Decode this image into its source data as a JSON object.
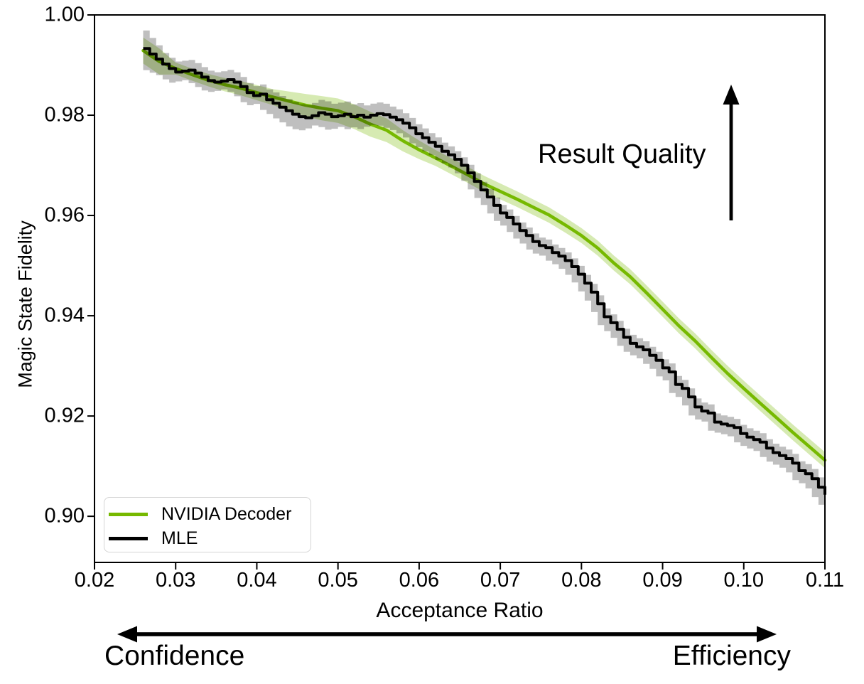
{
  "chart_data": {
    "type": "line",
    "title": "",
    "xlabel": "Acceptance Ratio",
    "ylabel": "Magic State Fidelity",
    "xlim": [
      0.02,
      0.11
    ],
    "ylim": [
      0.8908,
      1.0
    ],
    "xticks": [
      0.02,
      0.03,
      0.04,
      0.05,
      0.06,
      0.07,
      0.08,
      0.09,
      0.1,
      0.11
    ],
    "yticks": [
      0.9,
      0.92,
      0.94,
      0.96,
      0.98,
      1.0
    ],
    "grid": false,
    "legend_position": "lower left",
    "series": [
      {
        "name": "NVIDIA Decoder",
        "color": "#76b900",
        "band_color": "rgba(118,185,0,0.30)",
        "style": "smooth",
        "x0": 0.026,
        "dx": 0.002,
        "y": [
          0.9929,
          0.9907,
          0.9893,
          0.9881,
          0.987,
          0.9861,
          0.9854,
          0.9845,
          0.9836,
          0.9828,
          0.982,
          0.9814,
          0.9809,
          0.9797,
          0.9782,
          0.977,
          0.9749,
          0.9731,
          0.9715,
          0.9698,
          0.9681,
          0.9663,
          0.9648,
          0.9633,
          0.9617,
          0.9601,
          0.9581,
          0.956,
          0.9535,
          0.9505,
          0.9478,
          0.9446,
          0.9413,
          0.938,
          0.935,
          0.9317,
          0.9285,
          0.9255,
          0.9226,
          0.9197,
          0.9168,
          0.914,
          0.9112
        ],
        "band_knots": {
          "x": [
            0.026,
            0.0284,
            0.0287,
            0.033,
            0.042,
            0.047,
            0.055,
            0.062,
            0.068,
            0.08,
            0.095,
            0.11
          ],
          "hw": [
            0.0026,
            0.0026,
            0.0012,
            0.0012,
            0.0016,
            0.0024,
            0.0025,
            0.0016,
            0.0016,
            0.0015,
            0.0015,
            0.0016
          ]
        }
      },
      {
        "name": "MLE",
        "color": "#000000",
        "band_color": "rgba(0,0,0,0.25)",
        "style": "steps",
        "x0": 0.026,
        "dx": 0.0008,
        "y": [
          0.9933,
          0.9922,
          0.9912,
          0.9902,
          0.9893,
          0.9886,
          0.9888,
          0.989,
          0.9884,
          0.9876,
          0.9869,
          0.9866,
          0.9868,
          0.9871,
          0.9866,
          0.9857,
          0.9845,
          0.9839,
          0.9842,
          0.9831,
          0.9824,
          0.9816,
          0.9809,
          0.9802,
          0.9797,
          0.9795,
          0.9799,
          0.9805,
          0.9802,
          0.9797,
          0.9799,
          0.9802,
          0.9797,
          0.98,
          0.9796,
          0.98,
          0.9803,
          0.9801,
          0.9796,
          0.9791,
          0.9784,
          0.9775,
          0.9763,
          0.9755,
          0.9746,
          0.9738,
          0.9728,
          0.9721,
          0.9712,
          0.97,
          0.9685,
          0.9668,
          0.9651,
          0.9637,
          0.962,
          0.9605,
          0.9596,
          0.9583,
          0.957,
          0.956,
          0.9548,
          0.954,
          0.9536,
          0.9526,
          0.9519,
          0.951,
          0.9498,
          0.9483,
          0.9465,
          0.9447,
          0.9424,
          0.9398,
          0.9386,
          0.9373,
          0.9357,
          0.9345,
          0.9338,
          0.9332,
          0.9321,
          0.9311,
          0.9296,
          0.9288,
          0.9263,
          0.9255,
          0.9238,
          0.9218,
          0.921,
          0.9206,
          0.9188,
          0.9184,
          0.9181,
          0.9177,
          0.9165,
          0.9158,
          0.9153,
          0.9148,
          0.9136,
          0.9127,
          0.9121,
          0.9115,
          0.9106,
          0.9091,
          0.9085,
          0.9075,
          0.9058,
          0.9043
        ],
        "band_knots": {
          "x": [
            0.026,
            0.0272,
            0.0284,
            0.032,
            0.04,
            0.045,
            0.05,
            0.058,
            0.065,
            0.075,
            0.085,
            0.095,
            0.105,
            0.11
          ],
          "hw": [
            0.0036,
            0.003,
            0.0022,
            0.002,
            0.0019,
            0.0025,
            0.0026,
            0.002,
            0.0016,
            0.0016,
            0.0017,
            0.0017,
            0.0018,
            0.002
          ]
        }
      }
    ],
    "annotations": {
      "result_quality": "Result Quality",
      "confidence": "Confidence",
      "efficiency": "Efficiency"
    }
  }
}
